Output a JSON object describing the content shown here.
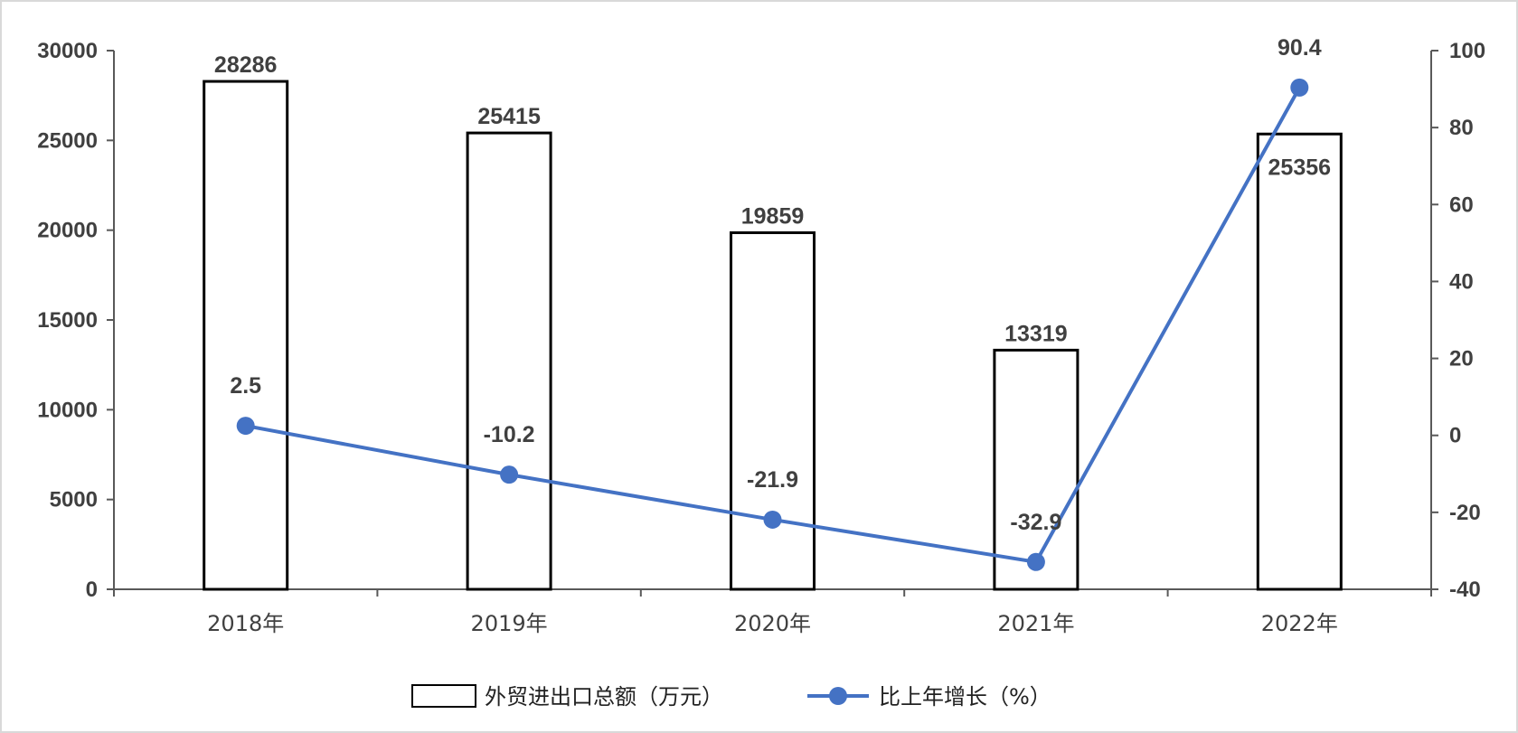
{
  "chart_data": {
    "type": "bar",
    "categories": [
      "2018年",
      "2019年",
      "2020年",
      "2021年",
      "2022年"
    ],
    "series": [
      {
        "name": "外贸进出口总额（万元）",
        "type": "bar",
        "axis": "left",
        "values": [
          28286,
          25415,
          19859,
          13319,
          25356
        ],
        "labels": [
          "28286",
          "25415",
          "19859",
          "13319",
          "25356"
        ]
      },
      {
        "name": "比上年增长（%）",
        "type": "line",
        "axis": "right",
        "values": [
          2.5,
          -10.2,
          -21.9,
          -32.9,
          90.4
        ],
        "labels": [
          "2.5",
          "-10.2",
          "-21.9",
          "-32.9",
          "90.4"
        ]
      }
    ],
    "y_left": {
      "min": 0,
      "max": 30000,
      "ticks": [
        "0",
        "5000",
        "10000",
        "15000",
        "20000",
        "25000",
        "30000"
      ]
    },
    "y_right": {
      "min": -40,
      "max": 100,
      "ticks": [
        "-40",
        "-20",
        "0",
        "20",
        "40",
        "60",
        "80",
        "100"
      ]
    },
    "grid": false,
    "legend_position": "bottom",
    "colors": {
      "bar_fill": "#ffffff",
      "bar_stroke": "#000000",
      "line": "#4472c4",
      "axis": "#595959",
      "text": "#404040",
      "frame": "#d9d9d9"
    }
  }
}
